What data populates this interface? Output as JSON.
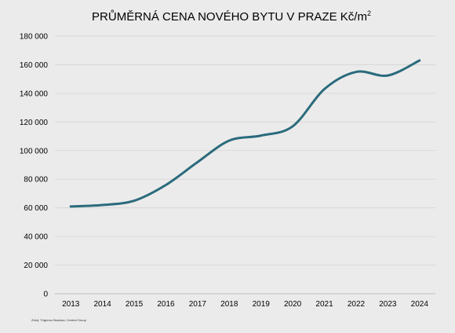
{
  "colors": {
    "background": "#ebebeb",
    "line": "#2a6b7c"
  },
  "chart_data": {
    "type": "line",
    "title": "PRŮMĚRNÁ CENA NOVÉHO BYTU V PRAZE Kč/m",
    "title_superscript": "2",
    "xlabel": "",
    "ylabel": "",
    "categories": [
      "2013",
      "2014",
      "2015",
      "2016",
      "2017",
      "2018",
      "2019",
      "2020",
      "2021",
      "2022",
      "2023",
      "2024"
    ],
    "series": [
      {
        "values": [
          61000,
          62000,
          65000,
          76000,
          92000,
          107000,
          110500,
          117000,
          143000,
          155000,
          152500,
          163000
        ]
      }
    ],
    "ylim": [
      0,
      180000
    ],
    "yticks": [
      0,
      20000,
      40000,
      60000,
      80000,
      100000,
      120000,
      140000,
      160000,
      180000
    ],
    "ytick_labels": [
      "0",
      "20 000",
      "40 000",
      "60 000",
      "80 000",
      "100 000",
      "120 000",
      "140 000",
      "160 000",
      "180 000"
    ],
    "grid": true,
    "legend": "none",
    "source_note": "Zdroj: Trigema-Skanska, Central Group"
  }
}
